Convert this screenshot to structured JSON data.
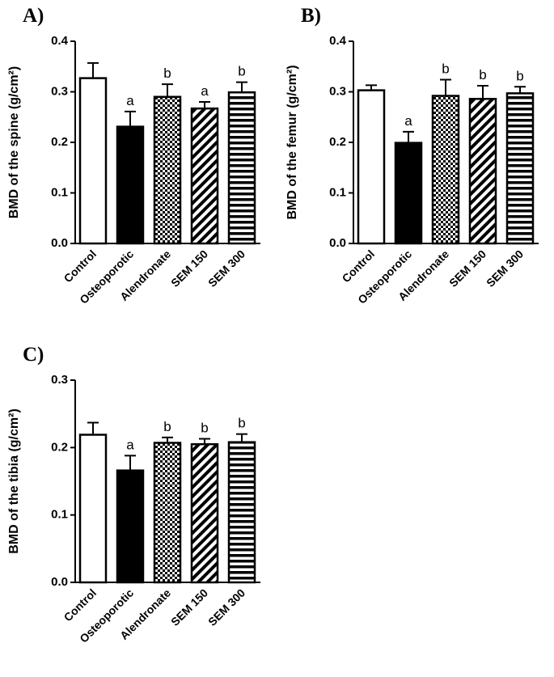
{
  "chart_data": [
    {
      "type": "bar",
      "title": "A)",
      "ylabel": "BMD of the spine (g/cm²)",
      "categories": [
        "Control",
        "Osteoporotic",
        "Alendronate",
        "SEM 150",
        "SEM 300"
      ],
      "values": [
        0.327,
        0.231,
        0.29,
        0.267,
        0.299
      ],
      "errors": [
        0.03,
        0.03,
        0.025,
        0.013,
        0.02
      ],
      "annotations": [
        null,
        "a",
        "b",
        "a",
        "b"
      ],
      "ylim": [
        0,
        0.4
      ],
      "yticks": [
        {
          "value": 0,
          "label": "0.0"
        },
        0.1,
        0.2,
        0.3,
        0.4
      ]
    },
    {
      "type": "bar",
      "title": "B)",
      "ylabel": "BMD of the femur (g/cm²)",
      "categories": [
        "Control",
        "Osteoporotic",
        "Alendronate",
        "SEM 150",
        "SEM 300"
      ],
      "values": [
        0.303,
        0.199,
        0.292,
        0.286,
        0.297
      ],
      "errors": [
        0.01,
        0.022,
        0.032,
        0.026,
        0.013
      ],
      "annotations": [
        null,
        "a",
        "b",
        "b",
        "b"
      ],
      "ylim": [
        0,
        0.4
      ],
      "yticks": [
        {
          "value": 0,
          "label": "0.0"
        },
        0.1,
        0.2,
        0.3,
        0.4
      ]
    },
    {
      "type": "bar",
      "title": "C)",
      "ylabel": "BMD of the tibia (g/cm²)",
      "categories": [
        "Control",
        "Osteoporotic",
        "Alendronate",
        "SEM 150",
        "SEM 300"
      ],
      "values": [
        0.219,
        0.166,
        0.207,
        0.205,
        0.208
      ],
      "errors": [
        0.018,
        0.022,
        0.008,
        0.008,
        0.012
      ],
      "annotations": [
        null,
        "a",
        "b",
        "b",
        "b"
      ],
      "ylim": [
        0,
        0.3
      ],
      "yticks": [
        {
          "value": 0,
          "label": "0.0"
        },
        0.1,
        0.2,
        0.3
      ]
    }
  ]
}
